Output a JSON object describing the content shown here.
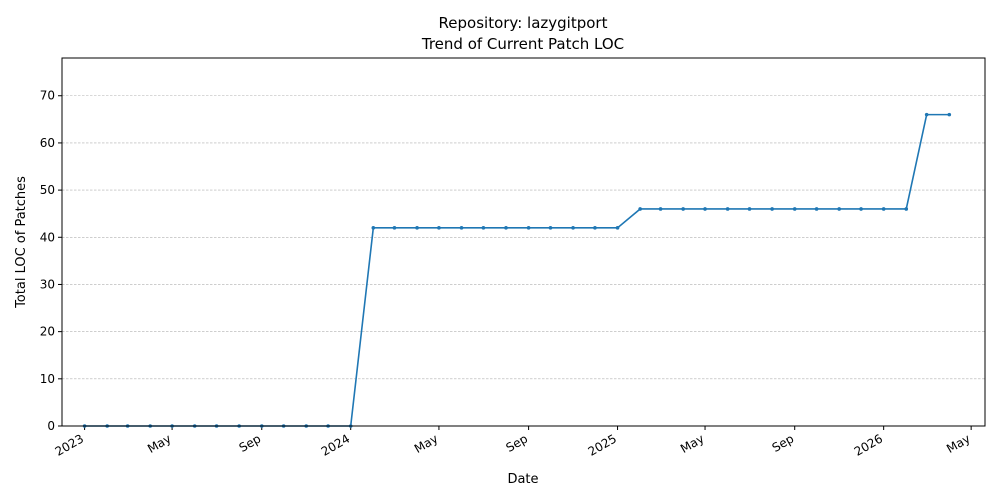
{
  "chart_data": {
    "type": "line",
    "title": "Repository: lazygitport",
    "subtitle": "Trend of Current Patch LOC",
    "xlabel": "Date",
    "ylabel": "Total LOC of Patches",
    "ylim": [
      0,
      78
    ],
    "xlim": [
      "2022-12-01",
      "2026-05-20"
    ],
    "grid": "y-dashed",
    "line_color": "#1f77b4",
    "x_ticks": [
      {
        "date": "2023-01-01",
        "label": "2023"
      },
      {
        "date": "2023-05-01",
        "label": "May"
      },
      {
        "date": "2023-09-01",
        "label": "Sep"
      },
      {
        "date": "2024-01-01",
        "label": "2024"
      },
      {
        "date": "2024-05-01",
        "label": "May"
      },
      {
        "date": "2024-09-01",
        "label": "Sep"
      },
      {
        "date": "2025-01-01",
        "label": "2025"
      },
      {
        "date": "2025-05-01",
        "label": "May"
      },
      {
        "date": "2025-09-01",
        "label": "Sep"
      },
      {
        "date": "2026-01-01",
        "label": "2026"
      },
      {
        "date": "2026-05-01",
        "label": "May"
      }
    ],
    "y_ticks": [
      0,
      10,
      20,
      30,
      40,
      50,
      60,
      70
    ],
    "series": [
      {
        "x": [
          "2023-01-01",
          "2023-02-01",
          "2023-03-01",
          "2023-04-01",
          "2023-05-01",
          "2023-06-01",
          "2023-07-01",
          "2023-08-01",
          "2023-09-01",
          "2023-10-01",
          "2023-11-01",
          "2023-12-01",
          "2024-01-01",
          "2024-02-01",
          "2024-03-01",
          "2024-04-01",
          "2024-05-01",
          "2024-06-01",
          "2024-07-01",
          "2024-08-01",
          "2024-09-01",
          "2024-10-01",
          "2024-11-01",
          "2024-12-01",
          "2025-01-01",
          "2025-02-01",
          "2025-03-01",
          "2025-04-01",
          "2025-05-01",
          "2025-06-01",
          "2025-07-01",
          "2025-08-01",
          "2025-09-01",
          "2025-10-01",
          "2025-11-01",
          "2025-12-01",
          "2026-01-01",
          "2026-02-01",
          "2026-03-01",
          "2026-04-01"
        ],
        "y": [
          0,
          0,
          0,
          0,
          0,
          0,
          0,
          0,
          0,
          0,
          0,
          0,
          0,
          42,
          42,
          42,
          42,
          42,
          42,
          42,
          42,
          42,
          42,
          42,
          42,
          46,
          46,
          46,
          46,
          46,
          46,
          46,
          46,
          46,
          46,
          46,
          46,
          46,
          66,
          66
        ]
      }
    ]
  }
}
